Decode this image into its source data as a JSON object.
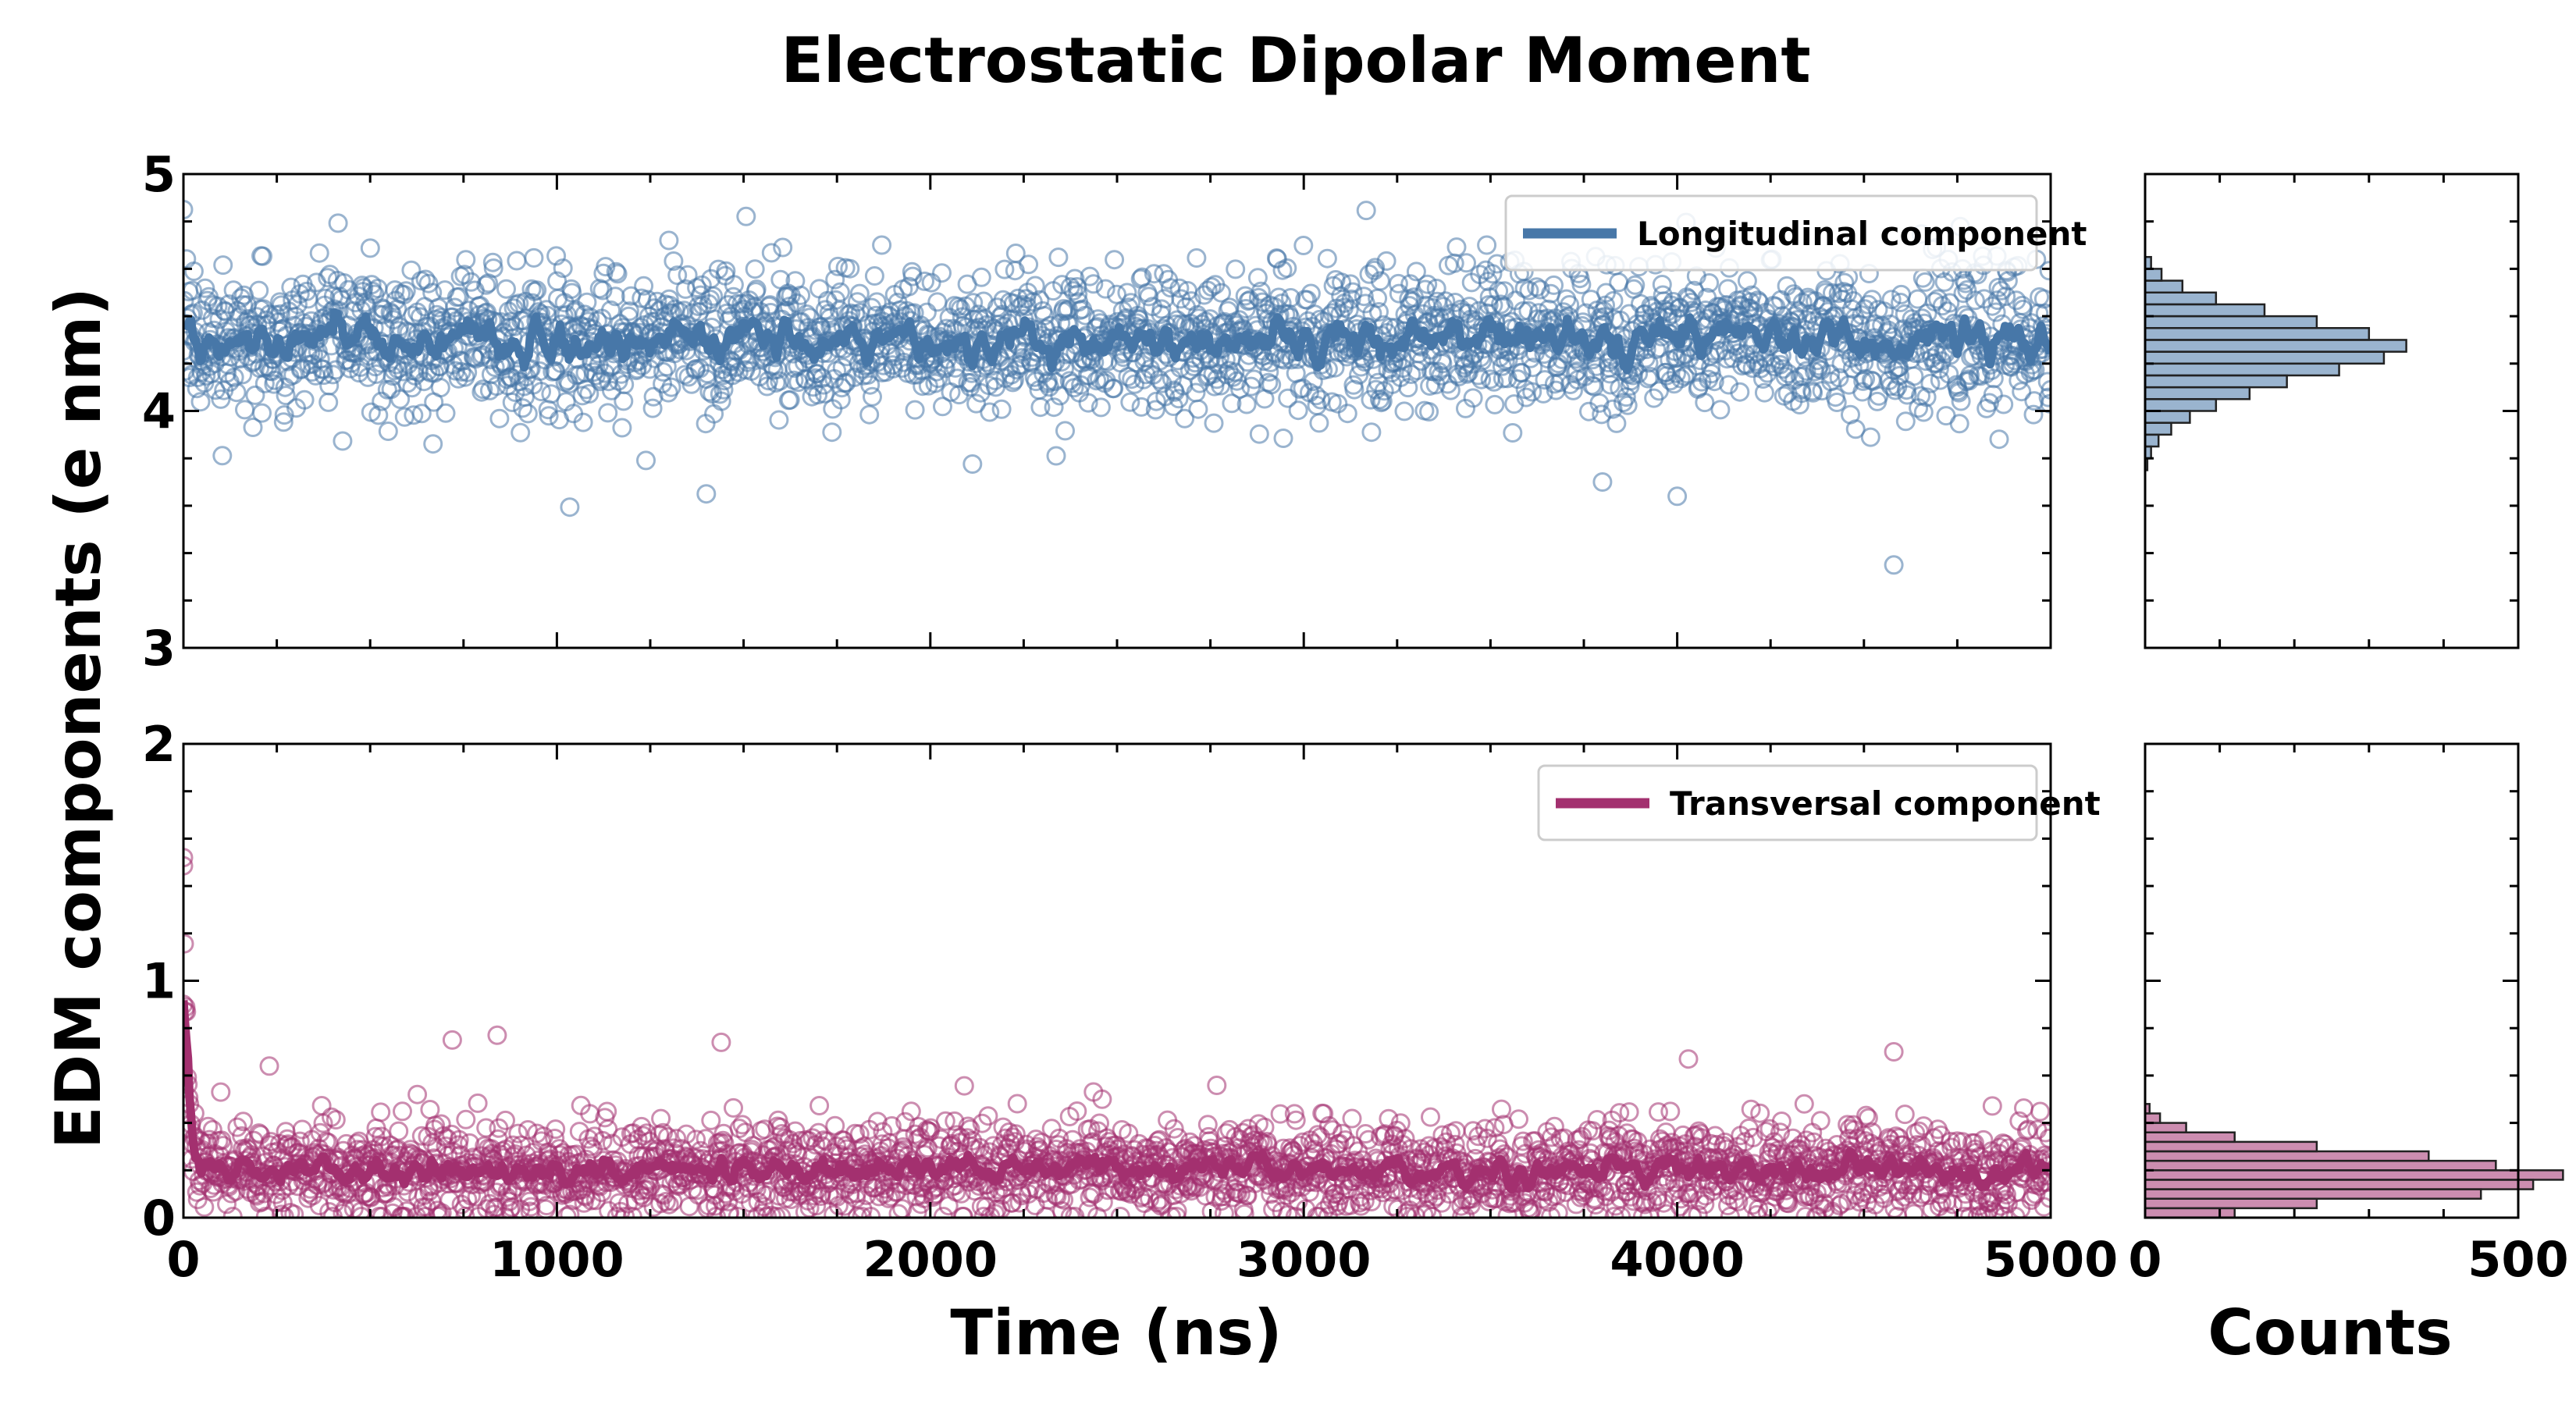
{
  "colors": {
    "longitudinal": "#4777a8",
    "transversal": "#a3306f"
  },
  "chart_data": {
    "type": "scatter",
    "title": "Electrostatic Dipolar Moment",
    "ylabel": "EDM components (e nm)",
    "xlabel": "Time (ns)",
    "hist_xlabel": "Counts",
    "panels": [
      {
        "id": "top",
        "series": {
          "name": "Longitudinal component",
          "mean": 4.3,
          "spread": 0.15
        },
        "xlim": [
          0,
          5000
        ],
        "ylim": [
          3,
          5
        ],
        "xticks": [
          0,
          1000,
          2000,
          3000,
          4000,
          5000
        ],
        "yticks": [
          3,
          4,
          5
        ],
        "ytick_labels": [
          "3",
          "4",
          "5"
        ],
        "legend_loc": "top-right",
        "outliers": [
          [
            0,
            4.85
          ],
          [
            1400,
            3.65
          ],
          [
            4000,
            3.64
          ],
          [
            4580,
            3.35
          ],
          [
            3800,
            3.7
          ],
          [
            1870,
            4.7
          ],
          [
            1300,
            4.72
          ],
          [
            3490,
            4.7
          ]
        ],
        "hist": {
          "xlim": [
            0,
            500
          ],
          "xticks": [
            0,
            500
          ],
          "xtick_labels": [
            "0",
            "500"
          ],
          "bin_edges": [
            3.75,
            3.8,
            3.85,
            3.9,
            3.95,
            4.0,
            4.05,
            4.1,
            4.15,
            4.2,
            4.25,
            4.3,
            4.35,
            4.4,
            4.45,
            4.5,
            4.55,
            4.6,
            4.65
          ],
          "counts": [
            3,
            8,
            18,
            35,
            60,
            95,
            140,
            190,
            260,
            320,
            350,
            300,
            230,
            160,
            95,
            50,
            22,
            8
          ]
        }
      },
      {
        "id": "bottom",
        "series": {
          "name": "Transversal component",
          "mean": 0.2,
          "spread": 0.1
        },
        "xlim": [
          0,
          5000
        ],
        "ylim": [
          0,
          2
        ],
        "xticks": [
          0,
          1000,
          2000,
          3000,
          4000,
          5000
        ],
        "xtick_labels": [
          "0",
          "1000",
          "2000",
          "3000",
          "4000",
          "5000"
        ],
        "yticks": [
          0,
          1,
          2
        ],
        "ytick_labels": [
          "0",
          "1",
          "2"
        ],
        "legend_loc": "top-right",
        "outliers": [
          [
            0,
            1.52
          ],
          [
            0,
            0.9
          ],
          [
            100,
            0.53
          ],
          [
            230,
            0.64
          ],
          [
            720,
            0.75
          ],
          [
            840,
            0.77
          ],
          [
            1440,
            0.74
          ],
          [
            4030,
            0.67
          ],
          [
            4580,
            0.7
          ],
          [
            2460,
            0.5
          ],
          [
            4340,
            0.48
          ]
        ],
        "hist": {
          "xlim": [
            0,
            500
          ],
          "xticks": [
            0,
            500
          ],
          "xtick_labels": [
            "0",
            "500"
          ],
          "bin_edges": [
            0.0,
            0.04,
            0.08,
            0.12,
            0.16,
            0.2,
            0.24,
            0.28,
            0.32,
            0.36,
            0.4,
            0.44,
            0.48
          ],
          "counts": [
            120,
            230,
            450,
            520,
            560,
            470,
            380,
            230,
            120,
            55,
            20,
            6
          ]
        }
      }
    ]
  }
}
